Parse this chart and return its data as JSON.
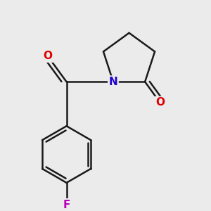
{
  "background_color": "#ebebeb",
  "bond_color": "#1a1a1a",
  "N_color": "#2200cc",
  "O_color": "#dd0000",
  "F_color": "#bb00bb",
  "line_width": 1.8,
  "figsize": [
    3.0,
    3.0
  ],
  "dpi": 100,
  "xlim": [
    -1.2,
    1.4
  ],
  "ylim": [
    -2.2,
    1.8
  ]
}
